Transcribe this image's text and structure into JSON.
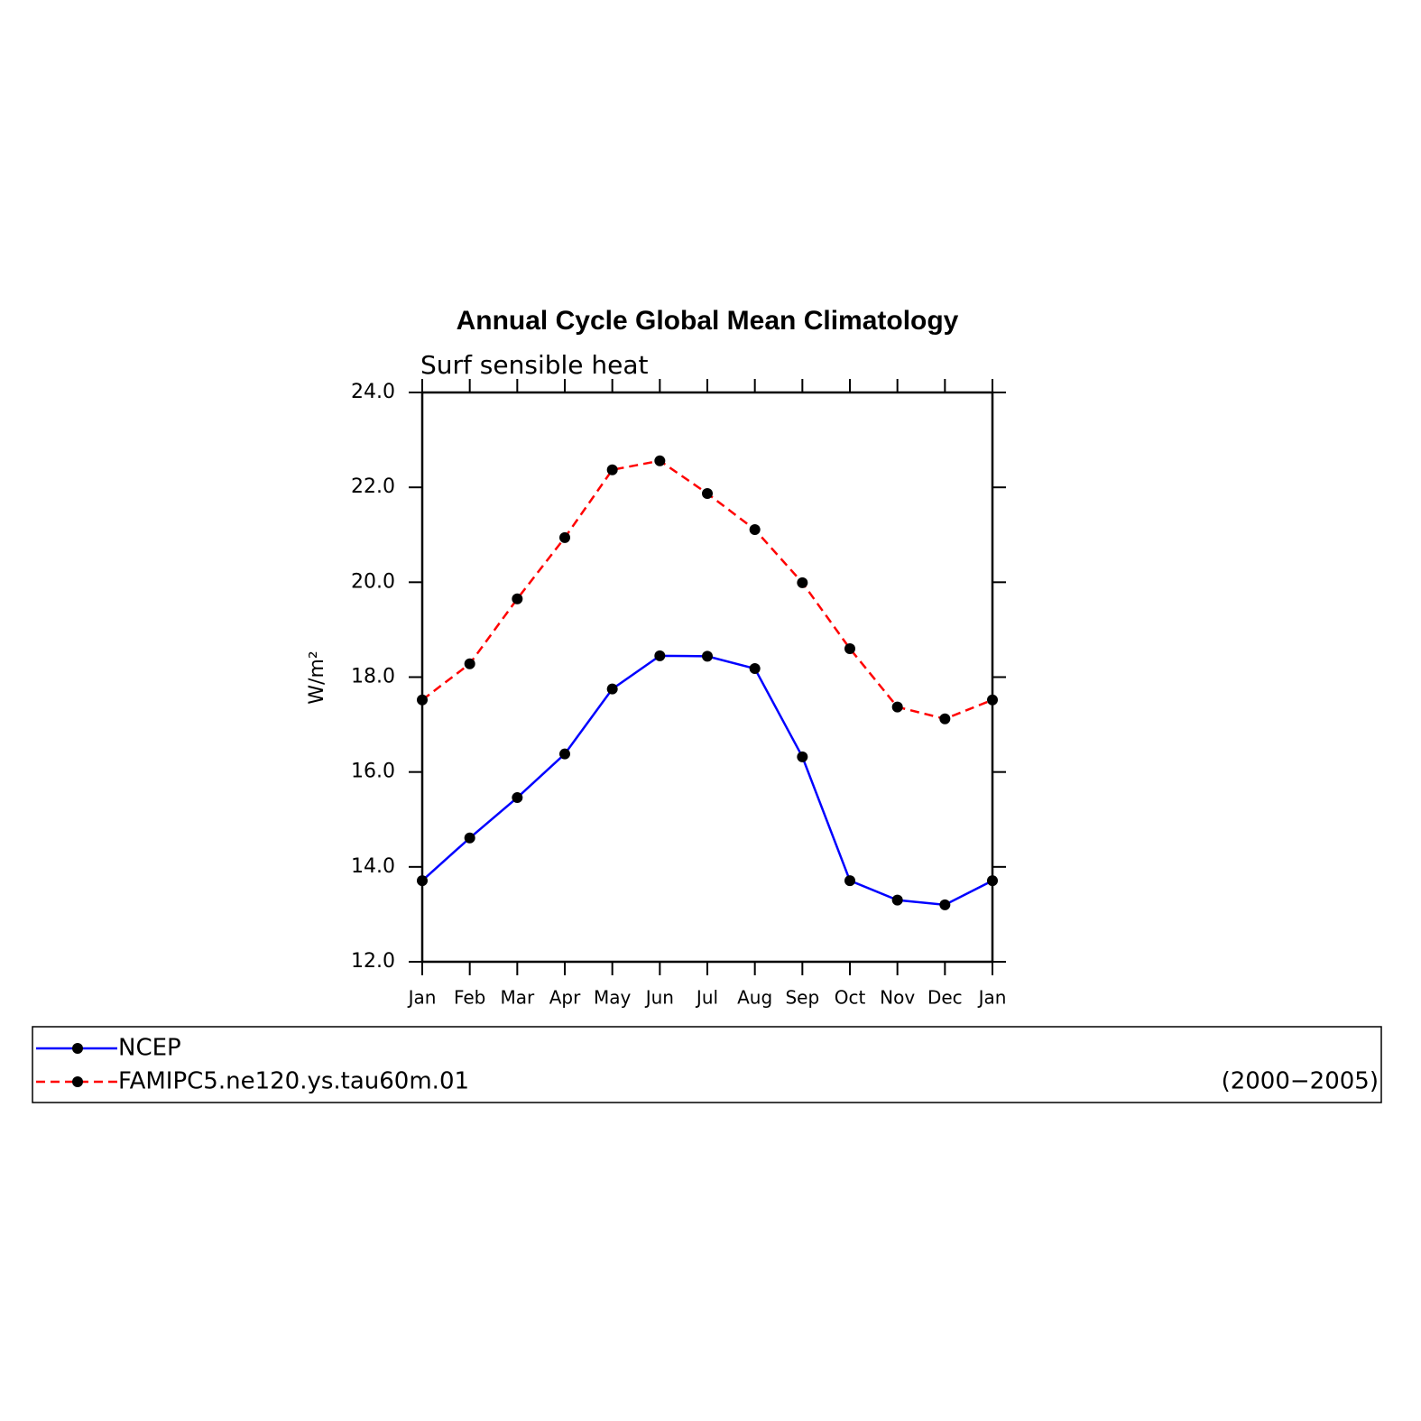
{
  "chart_data": {
    "type": "line",
    "title": "Annual Cycle Global Mean Climatology",
    "subtitle": "Surf sensible heat",
    "y_label": "W/m²",
    "annotation": "(2000−2005)",
    "categories": [
      "Jan",
      "Feb",
      "Mar",
      "Apr",
      "May",
      "Jun",
      "Jul",
      "Aug",
      "Sep",
      "Oct",
      "Nov",
      "Dec",
      "Jan"
    ],
    "series": [
      {
        "name": "NCEP",
        "color": "#0000ff",
        "line_style": "solid",
        "values": [
          13.71,
          14.61,
          15.46,
          16.38,
          17.75,
          18.45,
          18.44,
          18.18,
          16.32,
          13.71,
          13.3,
          13.2,
          13.71
        ]
      },
      {
        "name": "FAMIPC5.ne120.ys.tau60m.01",
        "color": "#ff0000",
        "line_style": "dashed",
        "values": [
          17.52,
          18.28,
          19.65,
          20.94,
          22.37,
          22.56,
          21.87,
          21.11,
          19.99,
          18.6,
          17.37,
          17.12,
          17.52
        ]
      }
    ],
    "marker_color": "#000000",
    "ylim": [
      12,
      24
    ],
    "yticks": [
      {
        "value": 12,
        "label": "12.0"
      },
      {
        "value": 14,
        "label": "14.0"
      },
      {
        "value": 16,
        "label": "16.0"
      },
      {
        "value": 18,
        "label": "18.0"
      },
      {
        "value": 20,
        "label": "20.0"
      },
      {
        "value": 22,
        "label": "22.0"
      },
      {
        "value": 24,
        "label": "24.0"
      }
    ],
    "legend": "bottom"
  }
}
